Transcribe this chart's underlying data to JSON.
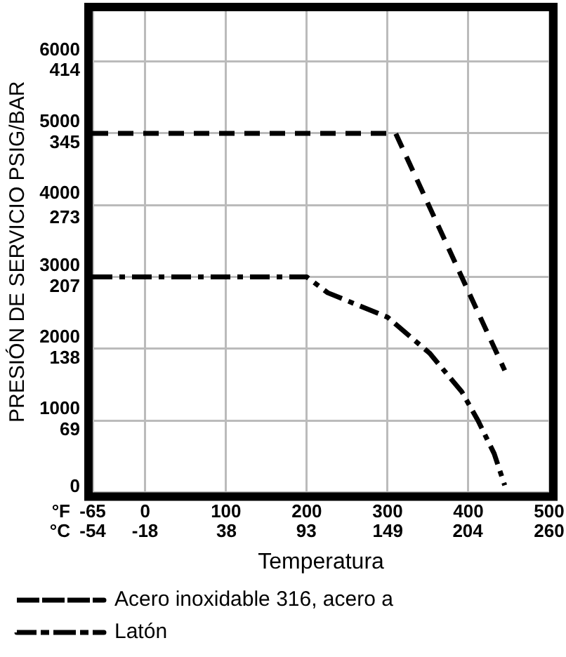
{
  "chart_data": {
    "type": "line",
    "xlabel": "Temperatura",
    "ylabel": "PRESIÓN DE SERVICIO PSIG/BAR",
    "annotations": [
      "°F",
      "°C"
    ],
    "xlim": [
      -65,
      500
    ],
    "ylim": [
      0,
      6700
    ],
    "xticks": [
      -65,
      0,
      100,
      200,
      300,
      400,
      500
    ],
    "x2lim": [
      -54,
      260
    ],
    "x2ticks": [
      -54,
      -18,
      38,
      93,
      149,
      204,
      260
    ],
    "yticks": [
      0,
      1000,
      2000,
      3000,
      4000,
      5000,
      6000
    ],
    "y2lim": [
      0,
      462
    ],
    "y2ticks": [
      69,
      138,
      207,
      273,
      345,
      414
    ],
    "grid": true,
    "legend": "bottom",
    "marker": "none",
    "series": [
      {
        "name": "Acero inoxidable 316, acero a",
        "color": "#000000",
        "line_style": "dashed",
        "x": [
          -65,
          310,
          445
        ],
        "values": [
          5000,
          5000,
          1700
        ]
      },
      {
        "name": "Latón",
        "color": "#000000",
        "line_style": "dashdot",
        "x": [
          -65,
          200,
          226,
          300,
          352,
          392,
          412,
          432,
          445
        ],
        "values": [
          3000,
          3000,
          2780,
          2440,
          1940,
          1400,
          1000,
          540,
          100
        ]
      }
    ]
  }
}
